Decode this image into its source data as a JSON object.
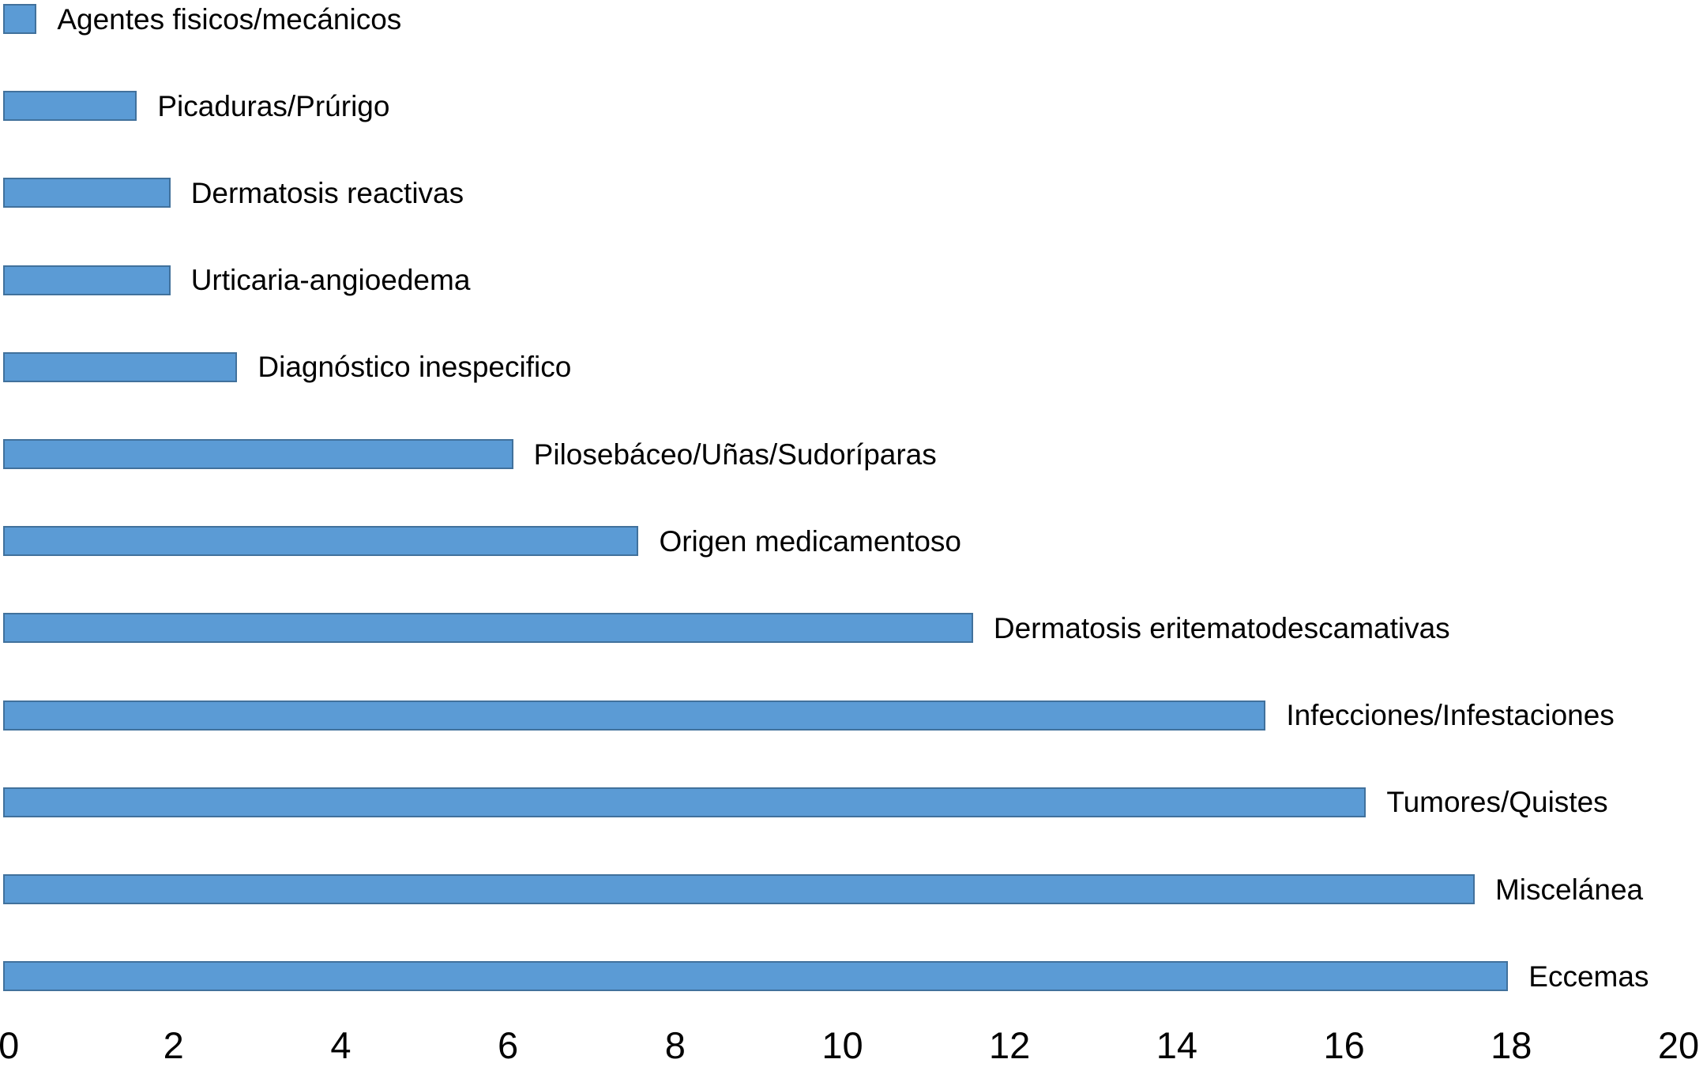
{
  "chart_data": {
    "type": "bar",
    "orientation": "horizontal",
    "categories": [
      "Agentes fisicos/mecánicos",
      "Picaduras/Prúrigo",
      "Dermatosis reactivas",
      "Urticaria-angioedema",
      "Diagnóstico inespecifico",
      "Pilosebáceo/Uñas/Sudoríparas",
      "Origen medicamentoso",
      "Dermatosis eritematodescamativas",
      "Infecciones/Infestaciones",
      "Tumores/Quistes",
      "Miscelánea",
      "Eccemas"
    ],
    "values": [
      0.4,
      1.6,
      2.0,
      2.0,
      2.8,
      6.1,
      7.6,
      11.6,
      15.1,
      16.3,
      17.6,
      18.0
    ],
    "xlim": [
      0,
      20
    ],
    "x_ticks": [
      0,
      2,
      4,
      6,
      8,
      10,
      12,
      14,
      16,
      18,
      20
    ],
    "grid": false,
    "legend": false,
    "label_position": "right-of-bar",
    "bar_color": "#5b9bd5",
    "bar_border_color": "#41719c",
    "text_color": "#000000",
    "background_color": "#ffffff"
  }
}
